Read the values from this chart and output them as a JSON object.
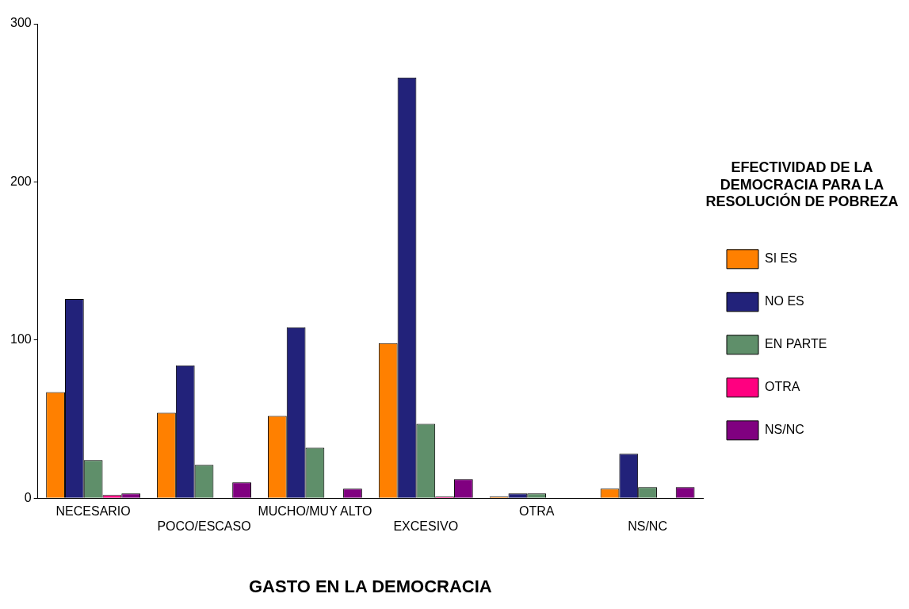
{
  "chart_data": {
    "type": "bar",
    "xlabel": "GASTO EN LA DEMOCRACIA",
    "legend_title": "EFECTIVIDAD DE LA DEMOCRACIA PARA LA RESOLUCIÓN DE POBREZA",
    "categories": [
      "NECESARIO",
      "POCO/ESCASO",
      "MUCHO/MUY ALTO",
      "EXCESIVO",
      "OTRA",
      "NS/NC"
    ],
    "series": [
      {
        "name": "SI ES",
        "color": "#ff8000",
        "values": [
          67,
          54,
          52,
          98,
          1,
          6
        ]
      },
      {
        "name": "NO ES",
        "color": "#22227a",
        "values": [
          126,
          84,
          108,
          266,
          3,
          28
        ]
      },
      {
        "name": "EN PARTE",
        "color": "#5f8f6a",
        "values": [
          24,
          21,
          32,
          47,
          3,
          7
        ]
      },
      {
        "name": "OTRA",
        "color": "#ff0080",
        "values": [
          2,
          0,
          0,
          1,
          0,
          0
        ]
      },
      {
        "name": "NS/NC",
        "color": "#800080",
        "values": [
          3,
          10,
          6,
          12,
          0,
          7
        ]
      }
    ],
    "ylim": [
      0,
      300
    ],
    "yticks": [
      0,
      100,
      200,
      300
    ],
    "grid": false,
    "legend": "right"
  }
}
